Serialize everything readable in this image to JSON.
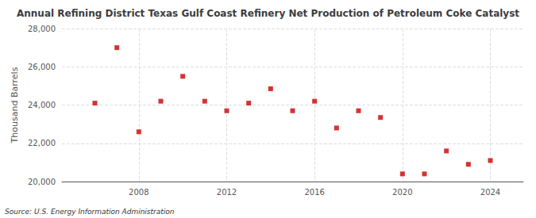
{
  "chart_data": {
    "type": "scatter",
    "title": "Annual Refining District Texas Gulf Coast Refinery Net Production of Petroleum Coke Catalyst",
    "ylabel": "Thousand Barrels",
    "annotations": [
      "Source: U.S. Energy Information Administration"
    ],
    "x": [
      2006,
      2007,
      2008,
      2009,
      2010,
      2011,
      2012,
      2013,
      2014,
      2015,
      2016,
      2017,
      2018,
      2019,
      2020,
      2021,
      2022,
      2023,
      2024
    ],
    "values": [
      24100,
      27000,
      22600,
      24200,
      25500,
      24200,
      23700,
      24100,
      24850,
      23700,
      24200,
      22800,
      23700,
      23350,
      20400,
      20400,
      21600,
      20900,
      21100
    ],
    "color": "#cc0000",
    "marker": "square",
    "xlim": [
      2004.5,
      2025.5
    ],
    "xticks": [
      2008,
      2012,
      2016,
      2020,
      2024
    ],
    "ylim": [
      20000,
      28000
    ],
    "yticks": [
      {
        "value": 20000,
        "label": "20,000"
      },
      {
        "value": 22000,
        "label": "22,000"
      },
      {
        "value": 24000,
        "label": "24,000"
      },
      {
        "value": 26000,
        "label": "26,000"
      },
      {
        "value": 28000,
        "label": "28,000"
      }
    ],
    "grid": true
  }
}
